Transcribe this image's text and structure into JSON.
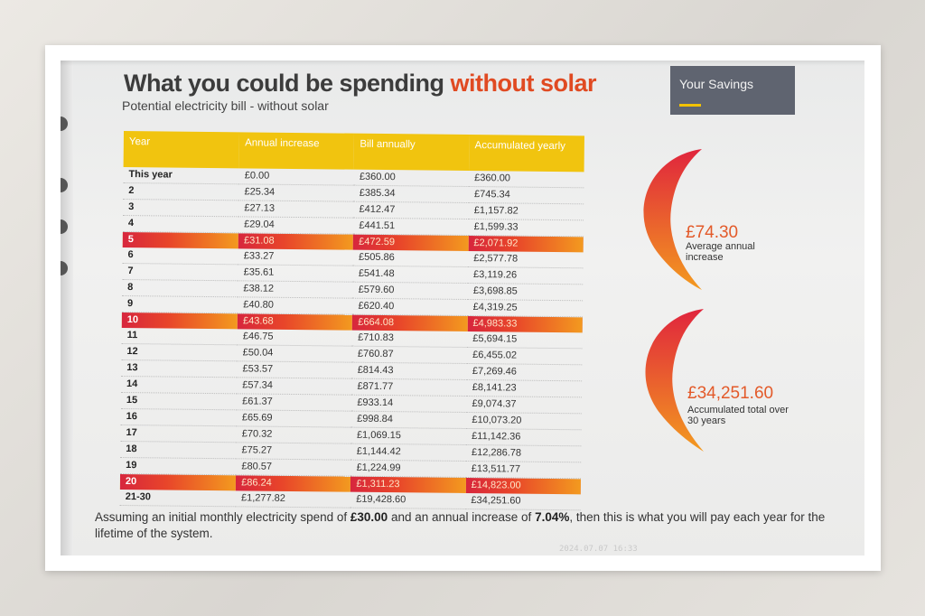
{
  "header": {
    "title_main": "What you could be spending ",
    "title_accent": "without solar",
    "subtitle": "Potential electricity bill - without solar"
  },
  "savings_box": {
    "label": "Your Savings"
  },
  "table": {
    "columns": [
      "Year",
      "Annual increase",
      "Bill annually",
      "Accumulated yearly"
    ],
    "rows": [
      {
        "year": "This year",
        "increase": "£0.00",
        "bill": "£360.00",
        "accumulated": "£360.00",
        "highlight": false
      },
      {
        "year": "2",
        "increase": "£25.34",
        "bill": "£385.34",
        "accumulated": "£745.34",
        "highlight": false
      },
      {
        "year": "3",
        "increase": "£27.13",
        "bill": "£412.47",
        "accumulated": "£1,157.82",
        "highlight": false
      },
      {
        "year": "4",
        "increase": "£29.04",
        "bill": "£441.51",
        "accumulated": "£1,599.33",
        "highlight": false
      },
      {
        "year": "5",
        "increase": "£31.08",
        "bill": "£472.59",
        "accumulated": "£2,071.92",
        "highlight": true
      },
      {
        "year": "6",
        "increase": "£33.27",
        "bill": "£505.86",
        "accumulated": "£2,577.78",
        "highlight": false
      },
      {
        "year": "7",
        "increase": "£35.61",
        "bill": "£541.48",
        "accumulated": "£3,119.26",
        "highlight": false
      },
      {
        "year": "8",
        "increase": "£38.12",
        "bill": "£579.60",
        "accumulated": "£3,698.85",
        "highlight": false
      },
      {
        "year": "9",
        "increase": "£40.80",
        "bill": "£620.40",
        "accumulated": "£4,319.25",
        "highlight": false
      },
      {
        "year": "10",
        "increase": "£43.68",
        "bill": "£664.08",
        "accumulated": "£4,983.33",
        "highlight": true
      },
      {
        "year": "11",
        "increase": "£46.75",
        "bill": "£710.83",
        "accumulated": "£5,694.15",
        "highlight": false
      },
      {
        "year": "12",
        "increase": "£50.04",
        "bill": "£760.87",
        "accumulated": "£6,455.02",
        "highlight": false
      },
      {
        "year": "13",
        "increase": "£53.57",
        "bill": "£814.43",
        "accumulated": "£7,269.46",
        "highlight": false
      },
      {
        "year": "14",
        "increase": "£57.34",
        "bill": "£871.77",
        "accumulated": "£8,141.23",
        "highlight": false
      },
      {
        "year": "15",
        "increase": "£61.37",
        "bill": "£933.14",
        "accumulated": "£9,074.37",
        "highlight": false
      },
      {
        "year": "16",
        "increase": "£65.69",
        "bill": "£998.84",
        "accumulated": "£10,073.20",
        "highlight": false
      },
      {
        "year": "17",
        "increase": "£70.32",
        "bill": "£1,069.15",
        "accumulated": "£11,142.36",
        "highlight": false
      },
      {
        "year": "18",
        "increase": "£75.27",
        "bill": "£1,144.42",
        "accumulated": "£12,286.78",
        "highlight": false
      },
      {
        "year": "19",
        "increase": "£80.57",
        "bill": "£1,224.99",
        "accumulated": "£13,511.77",
        "highlight": false
      },
      {
        "year": "20",
        "increase": "£86.24",
        "bill": "£1,311.23",
        "accumulated": "£14,823.00",
        "highlight": true
      },
      {
        "year": "21-30",
        "increase": "£1,277.82",
        "bill": "£19,428.60",
        "accumulated": "£34,251.60",
        "highlight": false
      }
    ]
  },
  "stats": [
    {
      "value": "£74.30",
      "caption": "Average annual increase"
    },
    {
      "value": "£34,251.60",
      "caption": "Accumulated total over 30 years"
    }
  ],
  "footnote": {
    "part1": "Assuming an initial monthly electricity spend of ",
    "spend": "£30.00",
    "part2": " and an annual increase of ",
    "rate": "7.04%",
    "part3": ", then this is what you will pay each year for the lifetime of the system."
  },
  "watermark": "2024.07.07 16:33",
  "colors": {
    "accent_orange": "#e04a22",
    "header_yellow": "#f1c40f",
    "highlight_red": "#d7263d",
    "highlight_orange": "#f39a1f",
    "savings_box_bg": "#5f6470"
  }
}
